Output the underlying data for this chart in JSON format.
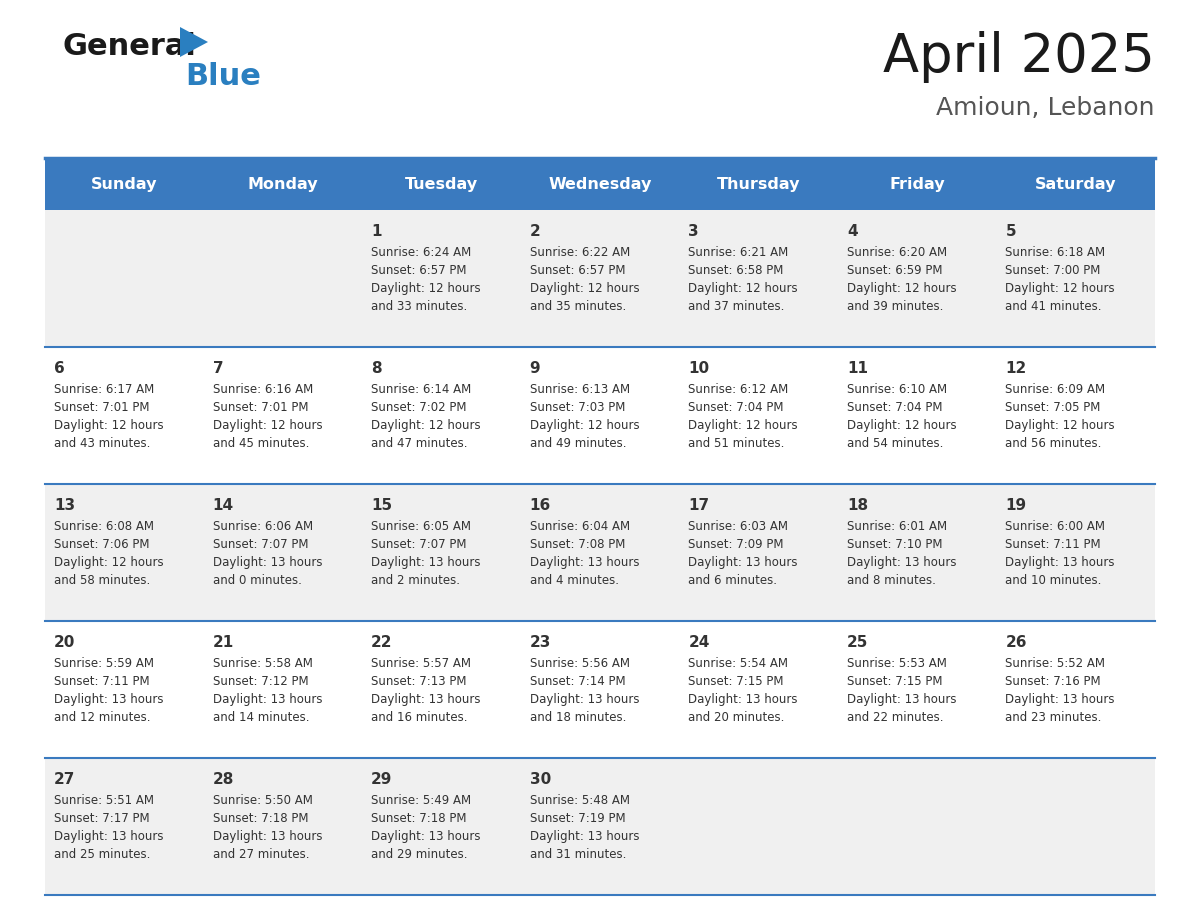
{
  "title": "April 2025",
  "subtitle": "Amioun, Lebanon",
  "days_of_week": [
    "Sunday",
    "Monday",
    "Tuesday",
    "Wednesday",
    "Thursday",
    "Friday",
    "Saturday"
  ],
  "header_bg": "#3a7abf",
  "header_text_color": "#ffffff",
  "row_bg_even": "#f0f0f0",
  "row_bg_odd": "#ffffff",
  "cell_text_color": "#333333",
  "separator_color": "#3a7abf",
  "calendar": [
    [
      {
        "day": "",
        "sunrise": "",
        "sunset": "",
        "daylight": ""
      },
      {
        "day": "",
        "sunrise": "",
        "sunset": "",
        "daylight": ""
      },
      {
        "day": "1",
        "sunrise": "Sunrise: 6:24 AM",
        "sunset": "Sunset: 6:57 PM",
        "daylight": "Daylight: 12 hours\nand 33 minutes."
      },
      {
        "day": "2",
        "sunrise": "Sunrise: 6:22 AM",
        "sunset": "Sunset: 6:57 PM",
        "daylight": "Daylight: 12 hours\nand 35 minutes."
      },
      {
        "day": "3",
        "sunrise": "Sunrise: 6:21 AM",
        "sunset": "Sunset: 6:58 PM",
        "daylight": "Daylight: 12 hours\nand 37 minutes."
      },
      {
        "day": "4",
        "sunrise": "Sunrise: 6:20 AM",
        "sunset": "Sunset: 6:59 PM",
        "daylight": "Daylight: 12 hours\nand 39 minutes."
      },
      {
        "day": "5",
        "sunrise": "Sunrise: 6:18 AM",
        "sunset": "Sunset: 7:00 PM",
        "daylight": "Daylight: 12 hours\nand 41 minutes."
      }
    ],
    [
      {
        "day": "6",
        "sunrise": "Sunrise: 6:17 AM",
        "sunset": "Sunset: 7:01 PM",
        "daylight": "Daylight: 12 hours\nand 43 minutes."
      },
      {
        "day": "7",
        "sunrise": "Sunrise: 6:16 AM",
        "sunset": "Sunset: 7:01 PM",
        "daylight": "Daylight: 12 hours\nand 45 minutes."
      },
      {
        "day": "8",
        "sunrise": "Sunrise: 6:14 AM",
        "sunset": "Sunset: 7:02 PM",
        "daylight": "Daylight: 12 hours\nand 47 minutes."
      },
      {
        "day": "9",
        "sunrise": "Sunrise: 6:13 AM",
        "sunset": "Sunset: 7:03 PM",
        "daylight": "Daylight: 12 hours\nand 49 minutes."
      },
      {
        "day": "10",
        "sunrise": "Sunrise: 6:12 AM",
        "sunset": "Sunset: 7:04 PM",
        "daylight": "Daylight: 12 hours\nand 51 minutes."
      },
      {
        "day": "11",
        "sunrise": "Sunrise: 6:10 AM",
        "sunset": "Sunset: 7:04 PM",
        "daylight": "Daylight: 12 hours\nand 54 minutes."
      },
      {
        "day": "12",
        "sunrise": "Sunrise: 6:09 AM",
        "sunset": "Sunset: 7:05 PM",
        "daylight": "Daylight: 12 hours\nand 56 minutes."
      }
    ],
    [
      {
        "day": "13",
        "sunrise": "Sunrise: 6:08 AM",
        "sunset": "Sunset: 7:06 PM",
        "daylight": "Daylight: 12 hours\nand 58 minutes."
      },
      {
        "day": "14",
        "sunrise": "Sunrise: 6:06 AM",
        "sunset": "Sunset: 7:07 PM",
        "daylight": "Daylight: 13 hours\nand 0 minutes."
      },
      {
        "day": "15",
        "sunrise": "Sunrise: 6:05 AM",
        "sunset": "Sunset: 7:07 PM",
        "daylight": "Daylight: 13 hours\nand 2 minutes."
      },
      {
        "day": "16",
        "sunrise": "Sunrise: 6:04 AM",
        "sunset": "Sunset: 7:08 PM",
        "daylight": "Daylight: 13 hours\nand 4 minutes."
      },
      {
        "day": "17",
        "sunrise": "Sunrise: 6:03 AM",
        "sunset": "Sunset: 7:09 PM",
        "daylight": "Daylight: 13 hours\nand 6 minutes."
      },
      {
        "day": "18",
        "sunrise": "Sunrise: 6:01 AM",
        "sunset": "Sunset: 7:10 PM",
        "daylight": "Daylight: 13 hours\nand 8 minutes."
      },
      {
        "day": "19",
        "sunrise": "Sunrise: 6:00 AM",
        "sunset": "Sunset: 7:11 PM",
        "daylight": "Daylight: 13 hours\nand 10 minutes."
      }
    ],
    [
      {
        "day": "20",
        "sunrise": "Sunrise: 5:59 AM",
        "sunset": "Sunset: 7:11 PM",
        "daylight": "Daylight: 13 hours\nand 12 minutes."
      },
      {
        "day": "21",
        "sunrise": "Sunrise: 5:58 AM",
        "sunset": "Sunset: 7:12 PM",
        "daylight": "Daylight: 13 hours\nand 14 minutes."
      },
      {
        "day": "22",
        "sunrise": "Sunrise: 5:57 AM",
        "sunset": "Sunset: 7:13 PM",
        "daylight": "Daylight: 13 hours\nand 16 minutes."
      },
      {
        "day": "23",
        "sunrise": "Sunrise: 5:56 AM",
        "sunset": "Sunset: 7:14 PM",
        "daylight": "Daylight: 13 hours\nand 18 minutes."
      },
      {
        "day": "24",
        "sunrise": "Sunrise: 5:54 AM",
        "sunset": "Sunset: 7:15 PM",
        "daylight": "Daylight: 13 hours\nand 20 minutes."
      },
      {
        "day": "25",
        "sunrise": "Sunrise: 5:53 AM",
        "sunset": "Sunset: 7:15 PM",
        "daylight": "Daylight: 13 hours\nand 22 minutes."
      },
      {
        "day": "26",
        "sunrise": "Sunrise: 5:52 AM",
        "sunset": "Sunset: 7:16 PM",
        "daylight": "Daylight: 13 hours\nand 23 minutes."
      }
    ],
    [
      {
        "day": "27",
        "sunrise": "Sunrise: 5:51 AM",
        "sunset": "Sunset: 7:17 PM",
        "daylight": "Daylight: 13 hours\nand 25 minutes."
      },
      {
        "day": "28",
        "sunrise": "Sunrise: 5:50 AM",
        "sunset": "Sunset: 7:18 PM",
        "daylight": "Daylight: 13 hours\nand 27 minutes."
      },
      {
        "day": "29",
        "sunrise": "Sunrise: 5:49 AM",
        "sunset": "Sunset: 7:18 PM",
        "daylight": "Daylight: 13 hours\nand 29 minutes."
      },
      {
        "day": "30",
        "sunrise": "Sunrise: 5:48 AM",
        "sunset": "Sunset: 7:19 PM",
        "daylight": "Daylight: 13 hours\nand 31 minutes."
      },
      {
        "day": "",
        "sunrise": "",
        "sunset": "",
        "daylight": ""
      },
      {
        "day": "",
        "sunrise": "",
        "sunset": "",
        "daylight": ""
      },
      {
        "day": "",
        "sunrise": "",
        "sunset": "",
        "daylight": ""
      }
    ]
  ],
  "logo_color_general": "#1a1a1a",
  "logo_color_blue": "#2a7fc0",
  "title_color": "#1a1a1a",
  "subtitle_color": "#555555"
}
